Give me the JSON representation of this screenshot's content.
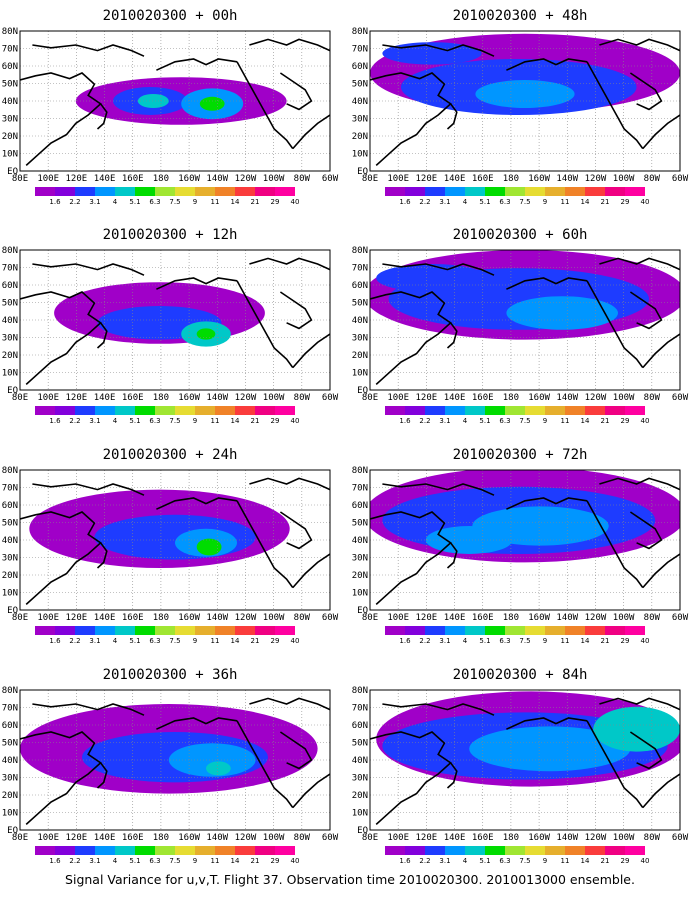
{
  "lat_labels": [
    "EQ",
    "10N",
    "20N",
    "30N",
    "40N",
    "50N",
    "60N",
    "70N",
    "80N"
  ],
  "lon_labels": [
    "80E",
    "100E",
    "120E",
    "140E",
    "160E",
    "180",
    "160W",
    "140W",
    "120W",
    "100W",
    "80W",
    "60W"
  ],
  "colorbar": {
    "labels": [
      "1.6",
      "2.2",
      "3.1",
      "4",
      "5.1",
      "6.3",
      "7.5",
      "9",
      "11",
      "14",
      "21",
      "29",
      "40"
    ],
    "colors": [
      "#a000c8",
      "#8200dc",
      "#1e3cff",
      "#0096ff",
      "#00c8c8",
      "#00dc00",
      "#a0e632",
      "#e6dc32",
      "#e6af2d",
      "#f08228",
      "#fa3c3c",
      "#f00082",
      "#ff00a0"
    ]
  },
  "panels": [
    {
      "title": "2010020300 + 00h"
    },
    {
      "title": "2010020300 + 48h"
    },
    {
      "title": "2010020300 + 12h"
    },
    {
      "title": "2010020300 + 60h"
    },
    {
      "title": "2010020300 + 24h"
    },
    {
      "title": "2010020300 + 72h"
    },
    {
      "title": "2010020300 + 36h"
    },
    {
      "title": "2010020300 + 84h"
    }
  ],
  "footer": "Signal Variance for u,v,T. Flight 37. Observation time 2010020300. 2010013000 ensemble."
}
